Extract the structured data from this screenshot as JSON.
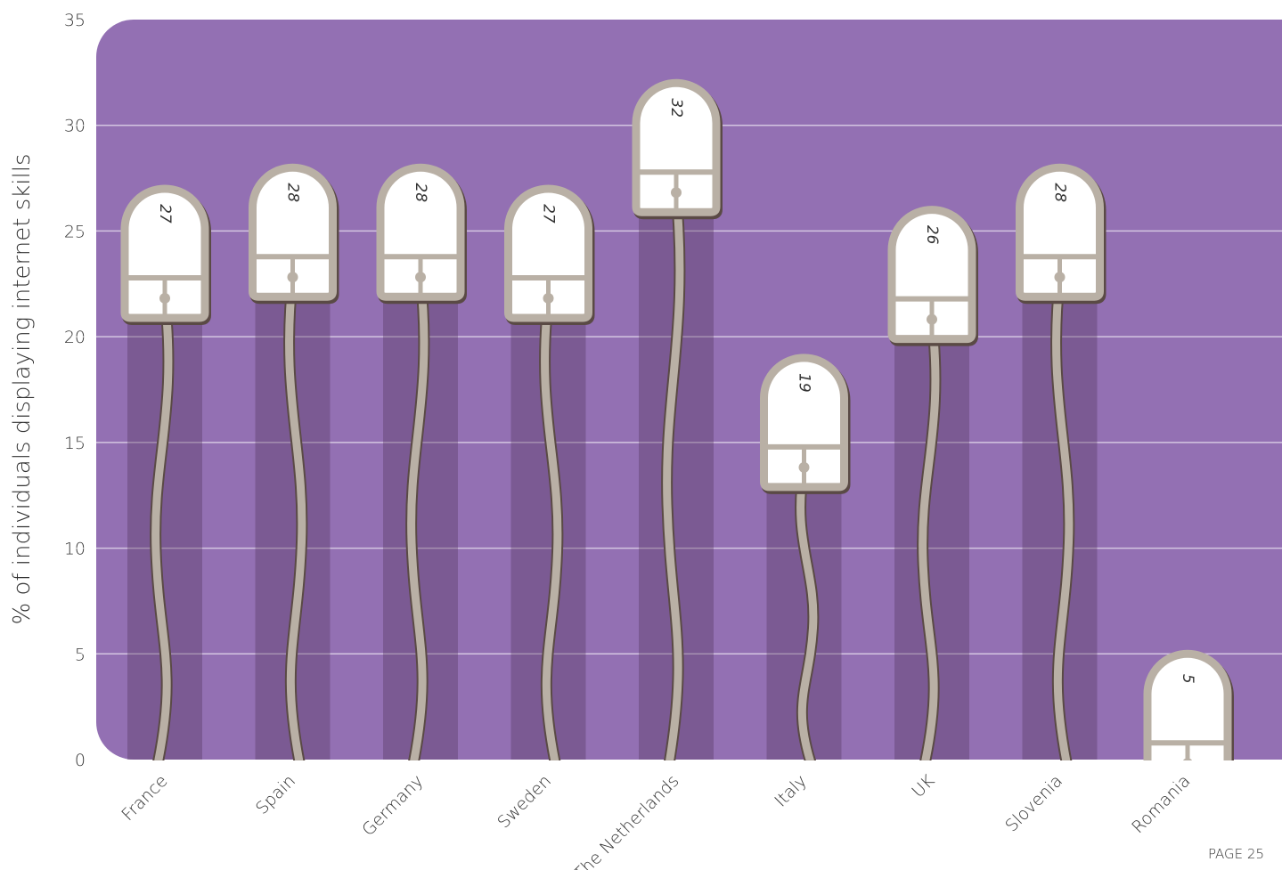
{
  "chart_data": {
    "type": "mouse-bar",
    "y_label": "% of individuals displaying internet skills",
    "categories": [
      "France",
      "Spain",
      "Germany",
      "Sweden",
      "The Netherlands",
      "Italy",
      "UK",
      "Slovenia",
      "Romania"
    ],
    "values": [
      27,
      28,
      28,
      27,
      32,
      19,
      26,
      28,
      5
    ],
    "color": "#9370b3",
    "ylim": [
      0,
      35
    ],
    "yticks": [
      0,
      5,
      10,
      15,
      20,
      25,
      30,
      35
    ],
    "grid": true,
    "footer": "PAGE 25"
  }
}
